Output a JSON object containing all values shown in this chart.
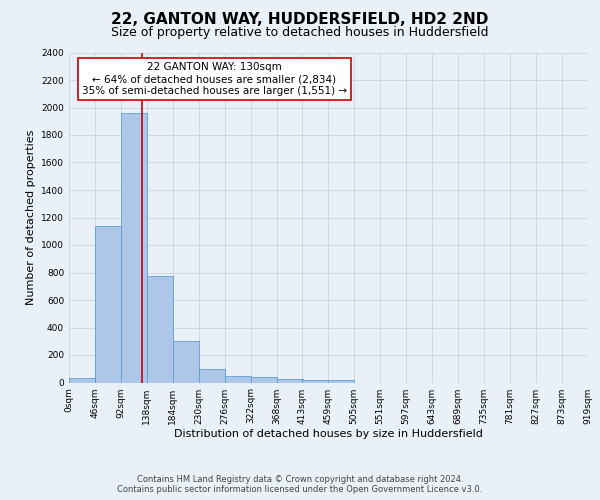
{
  "title": "22, GANTON WAY, HUDDERSFIELD, HD2 2ND",
  "subtitle": "Size of property relative to detached houses in Huddersfield",
  "xlabel": "Distribution of detached houses by size in Huddersfield",
  "ylabel": "Number of detached properties",
  "bar_values": [
    35,
    1140,
    1960,
    775,
    300,
    100,
    45,
    40,
    25,
    15,
    15,
    0,
    0,
    0,
    0,
    0,
    0,
    0,
    0,
    0
  ],
  "bin_edges": [
    0,
    46,
    92,
    138,
    184,
    230,
    276,
    322,
    368,
    413,
    459,
    505,
    551,
    597,
    643,
    689,
    735,
    781,
    827,
    873,
    919
  ],
  "tick_labels": [
    "0sqm",
    "46sqm",
    "92sqm",
    "138sqm",
    "184sqm",
    "230sqm",
    "276sqm",
    "322sqm",
    "368sqm",
    "413sqm",
    "459sqm",
    "505sqm",
    "551sqm",
    "597sqm",
    "643sqm",
    "689sqm",
    "735sqm",
    "781sqm",
    "827sqm",
    "873sqm",
    "919sqm"
  ],
  "bar_color": "#aec6e8",
  "bar_edge_color": "#5a9fd4",
  "grid_color": "#d0d8e8",
  "background_color": "#eaf0f8",
  "red_line_x": 130,
  "annotation_text": "22 GANTON WAY: 130sqm\n← 64% of detached houses are smaller (2,834)\n35% of semi-detached houses are larger (1,551) →",
  "annotation_box_color": "#ffffff",
  "annotation_box_edge_color": "#cc0000",
  "red_line_color": "#cc0000",
  "ylim": [
    0,
    2400
  ],
  "yticks": [
    0,
    200,
    400,
    600,
    800,
    1000,
    1200,
    1400,
    1600,
    1800,
    2000,
    2200,
    2400
  ],
  "footer_line1": "Contains HM Land Registry data © Crown copyright and database right 2024.",
  "footer_line2": "Contains public sector information licensed under the Open Government Licence v3.0.",
  "title_fontsize": 11,
  "subtitle_fontsize": 9,
  "label_fontsize": 8,
  "tick_fontsize": 6.5,
  "annotation_fontsize": 7.5,
  "footer_fontsize": 6
}
